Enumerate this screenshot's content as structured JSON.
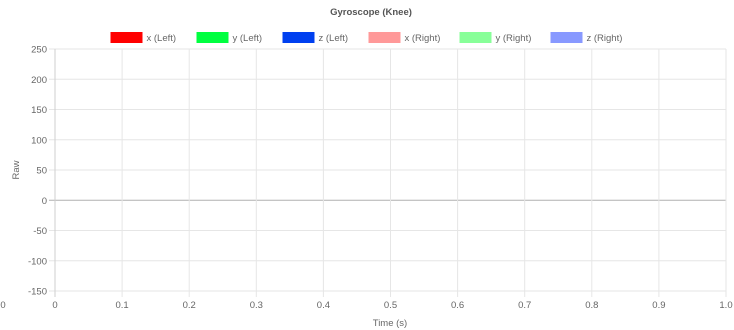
{
  "chart_data": {
    "type": "line",
    "title": "Gyroscope (Knee)",
    "xlabel": "Time (s)",
    "ylabel": "Raw",
    "xlim": [
      0,
      1.0
    ],
    "ylim": [
      -150,
      250
    ],
    "x_ticks": [
      "0",
      "0.1",
      "0.2",
      "0.3",
      "0.4",
      "0.5",
      "0.6",
      "0.7",
      "0.8",
      "0.9",
      "1.0"
    ],
    "x_ticks_extra_left": "0",
    "y_ticks": [
      250,
      200,
      150,
      100,
      50,
      0,
      -50,
      -100,
      -150
    ],
    "grid": true,
    "legend_position": "top",
    "series": [
      {
        "name": "x (Left)",
        "color": "#ff0000",
        "values": []
      },
      {
        "name": "y (Left)",
        "color": "#00ff40",
        "values": []
      },
      {
        "name": "z (Left)",
        "color": "#0040f0",
        "values": []
      },
      {
        "name": "x (Right)",
        "color": "#ff9999",
        "values": []
      },
      {
        "name": "y (Right)",
        "color": "#88ff99",
        "values": []
      },
      {
        "name": "z (Right)",
        "color": "#8899ff",
        "values": []
      }
    ]
  }
}
